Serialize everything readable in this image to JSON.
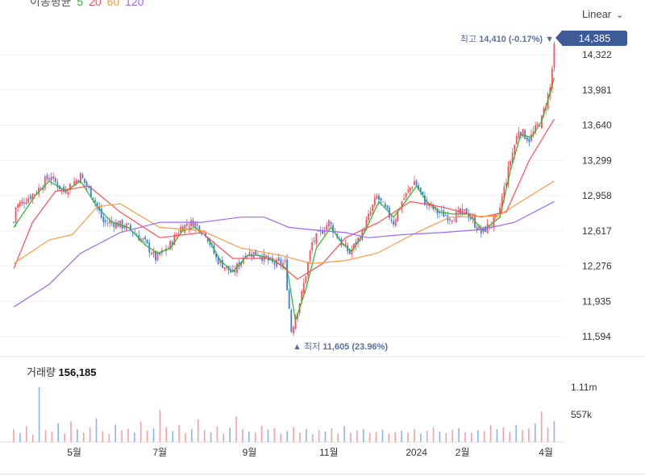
{
  "ma_legend": {
    "label": "이동평균",
    "periods": [
      {
        "label": "5",
        "color": "#22bb22"
      },
      {
        "label": "20",
        "color": "#ff4d5a"
      },
      {
        "label": "60",
        "color": "#ff9a3c"
      },
      {
        "label": "120",
        "color": "#9966ff"
      }
    ]
  },
  "scale_select": {
    "value": "Linear"
  },
  "current_price": "14,385",
  "high_annotation": {
    "label": "최고",
    "value": "14,410 (-0.17%)",
    "marker": "▼"
  },
  "low_annotation": {
    "label": "최저",
    "value": "11,605 (23.96%)",
    "marker": "▲"
  },
  "volume_panel": {
    "label": "거래량",
    "value": "156,185",
    "ticks": [
      {
        "label": "1.11m",
        "value": 1110000
      },
      {
        "label": "557k",
        "value": 557000
      }
    ]
  },
  "chart_data": {
    "type": "candlestick",
    "colors": {
      "up": "#ff4d5a",
      "down": "#3d7be0",
      "grid": "#eeeeee"
    },
    "y_ticks": [
      11594,
      11935,
      12276,
      12617,
      12958,
      13299,
      13640,
      13981,
      14322
    ],
    "y_tick_labels": [
      "11,594",
      "11,935",
      "12,276",
      "12,617",
      "12,958",
      "13,299",
      "13,640",
      "13,981",
      "14,322"
    ],
    "ylim": [
      11450,
      14550
    ],
    "xlim": [
      0,
      260
    ],
    "x_ticks": [
      {
        "day": 29,
        "label": "5월"
      },
      {
        "day": 70,
        "label": "7월"
      },
      {
        "day": 113,
        "label": "9월"
      },
      {
        "day": 151,
        "label": "11월"
      },
      {
        "day": 193,
        "label": "2024"
      },
      {
        "day": 215,
        "label": "2월"
      },
      {
        "day": 255,
        "label": "4월"
      }
    ],
    "close_keypoints": [
      [
        0,
        12700
      ],
      [
        1,
        12850
      ],
      [
        11,
        13000
      ],
      [
        17,
        13150
      ],
      [
        24,
        13000
      ],
      [
        32,
        13150
      ],
      [
        38,
        12950
      ],
      [
        43,
        12700
      ],
      [
        47,
        12700
      ],
      [
        55,
        12650
      ],
      [
        63,
        12500
      ],
      [
        68,
        12350
      ],
      [
        74,
        12450
      ],
      [
        80,
        12650
      ],
      [
        86,
        12700
      ],
      [
        92,
        12600
      ],
      [
        97,
        12350
      ],
      [
        105,
        12200
      ],
      [
        111,
        12400
      ],
      [
        117,
        12400
      ],
      [
        124,
        12300
      ],
      [
        130,
        12300
      ],
      [
        133,
        11650
      ],
      [
        138,
        12000
      ],
      [
        143,
        12500
      ],
      [
        151,
        12700
      ],
      [
        157,
        12500
      ],
      [
        161,
        12400
      ],
      [
        167,
        12600
      ],
      [
        174,
        12950
      ],
      [
        182,
        12700
      ],
      [
        186,
        12900
      ],
      [
        192,
        13100
      ],
      [
        197,
        12900
      ],
      [
        203,
        12800
      ],
      [
        209,
        12750
      ],
      [
        217,
        12800
      ],
      [
        224,
        12600
      ],
      [
        232,
        12750
      ],
      [
        238,
        13300
      ],
      [
        242,
        13600
      ],
      [
        247,
        13500
      ],
      [
        253,
        13700
      ],
      [
        257,
        14000
      ],
      [
        259,
        14385
      ]
    ],
    "series": [
      {
        "name": "MA5",
        "color": "#22bb22",
        "points": [
          [
            0,
            12650
          ],
          [
            10,
            12950
          ],
          [
            17,
            13100
          ],
          [
            25,
            13000
          ],
          [
            32,
            13100
          ],
          [
            40,
            12850
          ],
          [
            47,
            12700
          ],
          [
            55,
            12650
          ],
          [
            63,
            12480
          ],
          [
            69,
            12400
          ],
          [
            75,
            12450
          ],
          [
            81,
            12620
          ],
          [
            87,
            12650
          ],
          [
            93,
            12550
          ],
          [
            99,
            12330
          ],
          [
            105,
            12220
          ],
          [
            112,
            12380
          ],
          [
            118,
            12380
          ],
          [
            125,
            12320
          ],
          [
            131,
            12250
          ],
          [
            135,
            11750
          ],
          [
            140,
            12050
          ],
          [
            145,
            12450
          ],
          [
            152,
            12650
          ],
          [
            158,
            12480
          ],
          [
            162,
            12420
          ],
          [
            168,
            12600
          ],
          [
            175,
            12900
          ],
          [
            182,
            12750
          ],
          [
            187,
            12880
          ],
          [
            193,
            13050
          ],
          [
            198,
            12900
          ],
          [
            204,
            12800
          ],
          [
            210,
            12780
          ],
          [
            218,
            12780
          ],
          [
            225,
            12620
          ],
          [
            233,
            12750
          ],
          [
            238,
            13200
          ],
          [
            243,
            13550
          ],
          [
            248,
            13520
          ],
          [
            253,
            13680
          ],
          [
            257,
            13950
          ],
          [
            259,
            14100
          ]
        ]
      },
      {
        "name": "MA20",
        "color": "#ff4d5a",
        "points": [
          [
            0,
            12250
          ],
          [
            9,
            12700
          ],
          [
            20,
            13000
          ],
          [
            36,
            13050
          ],
          [
            51,
            12800
          ],
          [
            70,
            12550
          ],
          [
            90,
            12600
          ],
          [
            105,
            12350
          ],
          [
            124,
            12350
          ],
          [
            136,
            12150
          ],
          [
            148,
            12300
          ],
          [
            159,
            12550
          ],
          [
            175,
            12700
          ],
          [
            190,
            12900
          ],
          [
            205,
            12850
          ],
          [
            224,
            12750
          ],
          [
            236,
            12800
          ],
          [
            247,
            13300
          ],
          [
            259,
            13700
          ]
        ]
      },
      {
        "name": "MA60",
        "color": "#ff9a3c",
        "points": [
          [
            0,
            12300
          ],
          [
            17,
            12530
          ],
          [
            28,
            12580
          ],
          [
            40,
            12850
          ],
          [
            51,
            12880
          ],
          [
            70,
            12650
          ],
          [
            90,
            12620
          ],
          [
            109,
            12450
          ],
          [
            128,
            12380
          ],
          [
            143,
            12300
          ],
          [
            159,
            12330
          ],
          [
            174,
            12400
          ],
          [
            193,
            12600
          ],
          [
            209,
            12750
          ],
          [
            232,
            12760
          ],
          [
            243,
            12900
          ],
          [
            259,
            13100
          ]
        ]
      },
      {
        "name": "MA120",
        "color": "#9966ff",
        "points": [
          [
            0,
            11880
          ],
          [
            17,
            12100
          ],
          [
            32,
            12400
          ],
          [
            51,
            12600
          ],
          [
            70,
            12700
          ],
          [
            90,
            12700
          ],
          [
            109,
            12750
          ],
          [
            120,
            12750
          ],
          [
            132,
            12650
          ],
          [
            147,
            12620
          ],
          [
            159,
            12600
          ],
          [
            170,
            12550
          ],
          [
            186,
            12580
          ],
          [
            205,
            12600
          ],
          [
            224,
            12630
          ],
          [
            240,
            12700
          ],
          [
            259,
            12900
          ]
        ]
      }
    ],
    "volume": [
      260,
      180,
      320,
      150,
      1110,
      240,
      210,
      380,
      170,
      420,
      260,
      190,
      300,
      480,
      220,
      160,
      350,
      240,
      270,
      190,
      410,
      230,
      280,
      650,
      300,
      220,
      340,
      180,
      260,
      460,
      240,
      200,
      310,
      170,
      290,
      520,
      260,
      210,
      190,
      330,
      250,
      280,
      170,
      220,
      300,
      190,
      260,
      160,
      240,
      210,
      280,
      170,
      320,
      190,
      230,
      260,
      180,
      210,
      250,
      170,
      200,
      230,
      190,
      260,
      170,
      230,
      300,
      210,
      180,
      250,
      280,
      200,
      190,
      240,
      220,
      340,
      260,
      300,
      200,
      350,
      240,
      280,
      380,
      620,
      300,
      420
    ]
  }
}
